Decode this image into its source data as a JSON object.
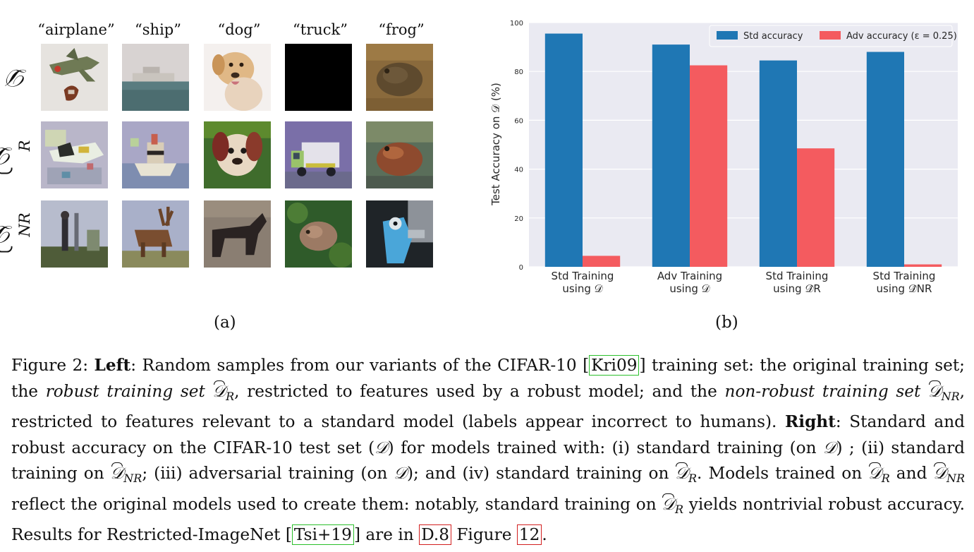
{
  "panel_a": {
    "columns": [
      "“airplane”",
      "“ship”",
      "“dog”",
      "“truck”",
      "“frog”"
    ],
    "rows": [
      {
        "symbol": "𝒟",
        "sub": ""
      },
      {
        "symbol": "𝒟",
        "sub": "R"
      },
      {
        "symbol": "𝒟",
        "sub": "NR"
      }
    ],
    "caption": "(a)"
  },
  "panel_b": {
    "caption": "(b)"
  },
  "chart_data": {
    "type": "bar",
    "categories": [
      [
        "Std Training",
        "using 𝒟"
      ],
      [
        "Adv Training",
        "using 𝒟"
      ],
      [
        "Std Training",
        "using 𝒟̂R"
      ],
      [
        "Std Training",
        "using 𝒟̂NR"
      ]
    ],
    "series": [
      {
        "name": "Std accuracy",
        "color": "#1f77b4",
        "values": [
          95.5,
          91,
          84.5,
          88
        ]
      },
      {
        "name": "Adv accuracy (ε = 0.25)",
        "color": "#f45b5f",
        "values": [
          4.5,
          82.5,
          48.5,
          1
        ]
      }
    ],
    "ylabel": "Test Accuracy on 𝒟 (%)",
    "ylim": [
      0,
      100
    ],
    "yticks": [
      0,
      20,
      40,
      60,
      80,
      100
    ],
    "grid": true,
    "legend": "top-right"
  },
  "caption": {
    "fig": "Figure 2: ",
    "left_label": "Left",
    "t1": ": Random samples from our variants of the CIFAR-10 [",
    "cite1": "Kri09",
    "t2": "] training set: the original training set; the ",
    "it1": "robust training set",
    "t3": ", restricted to features used by a robust model; and the ",
    "it2": "non-robust training set",
    "t4": ", restricted to features relevant to a standard model (labels appear incorrect to humans). ",
    "right_label": "Right",
    "t5": ": Standard and robust accuracy on the CIFAR-10 test set (",
    "t6": ") for models trained with: (i) standard training (on ",
    "t7": ") ; (ii) standard training on ",
    "t8": "; (iii) adversarial training (on ",
    "t9": "); and (iv) standard training on ",
    "t10": ". Models trained on ",
    "t11": " and ",
    "t12": " reflect the original models used to create them: notably, standard training on ",
    "t13": " yields nontrivial robust accuracy. Results for Restricted-ImageNet [",
    "cite2": "Tsi+19",
    "t14": "] are in ",
    "ref1": "D.8",
    "t15": " Figure ",
    "ref2": "12",
    "t16": ".",
    "sym": "𝒟",
    "sub_r": "R",
    "sub_nr": "NR"
  }
}
